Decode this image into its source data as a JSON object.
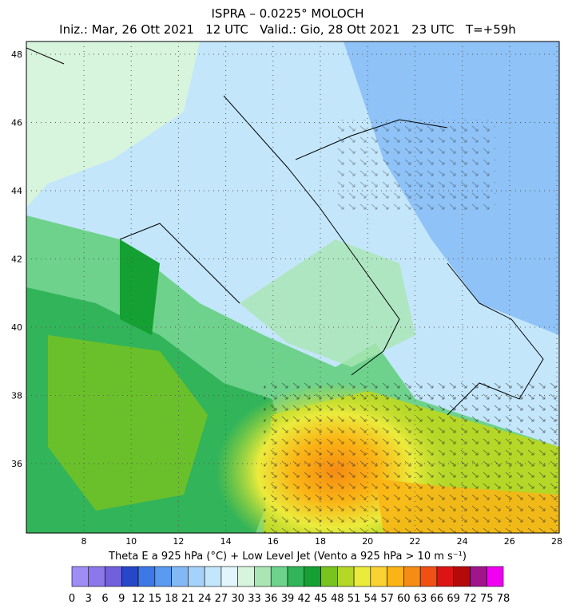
{
  "header": {
    "title": "ISPRA – 0.0225° MOLOCH",
    "subtitle": "Iniz.: Mar, 26 Ott 2021   12 UTC   Valid.: Gio, 28 Ott 2021   23 UTC   T=+59h"
  },
  "map": {
    "yticks": [
      48,
      46,
      44,
      42,
      40,
      38,
      36
    ],
    "xticks": [
      8,
      10,
      12,
      14,
      16,
      18,
      20,
      22,
      24,
      26,
      28
    ]
  },
  "colorbar": {
    "title": "Theta E a 925 hPa (°C) + Low Level Jet (Vento a 925 hPa > 10 m s⁻¹)",
    "labels": [
      0,
      3,
      6,
      9,
      12,
      15,
      18,
      21,
      24,
      27,
      30,
      33,
      36,
      39,
      42,
      45,
      48,
      51,
      54,
      57,
      60,
      63,
      66,
      69,
      72,
      75,
      78
    ],
    "colors": [
      "#a08cf5",
      "#8c78eb",
      "#7060dc",
      "#2846c8",
      "#3c78e6",
      "#5a9af0",
      "#82b9f5",
      "#a5d2fa",
      "#c3e6fa",
      "#e1f5fa",
      "#d7f5dc",
      "#aae6b4",
      "#6ed28c",
      "#32b45a",
      "#14a032",
      "#78c31e",
      "#b4d728",
      "#ebeb3c",
      "#fad232",
      "#fab414",
      "#f58c14",
      "#f05014",
      "#dc1414",
      "#b40a0a",
      "#a0148c",
      "#f000f0"
    ]
  }
}
